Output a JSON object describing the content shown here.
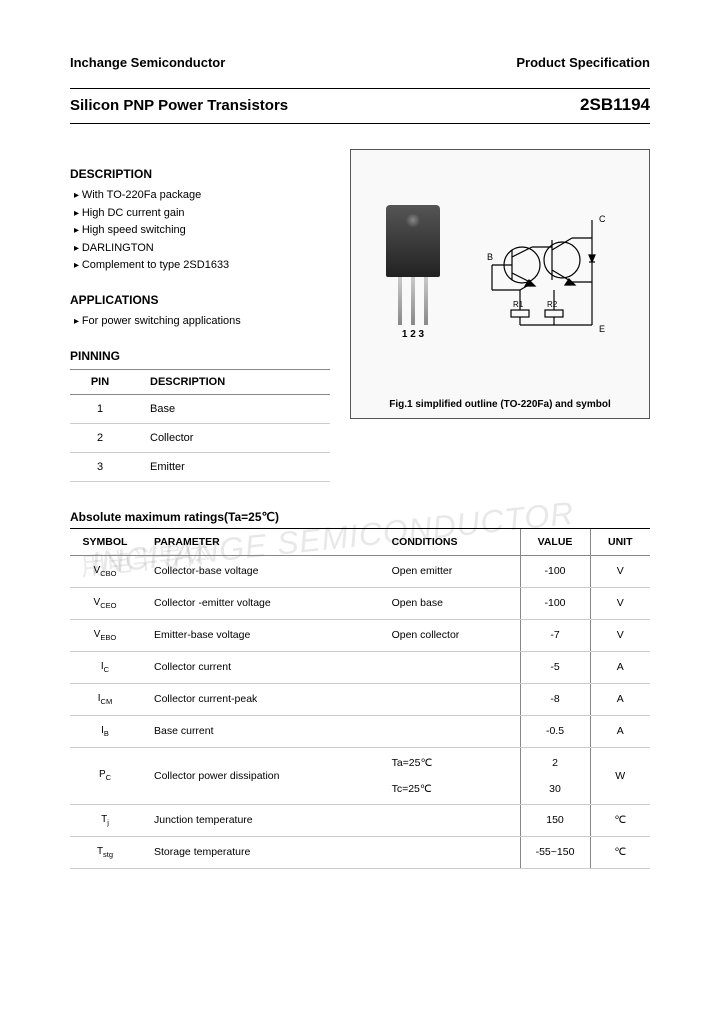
{
  "header": {
    "company": "Inchange Semiconductor",
    "docType": "Product Specification"
  },
  "title": {
    "left": "Silicon PNP Power Transistors",
    "right": "2SB1194"
  },
  "description": {
    "heading": "DESCRIPTION",
    "items": [
      "With TO-220Fa package",
      "High DC current gain",
      "High speed switching",
      "DARLINGTON",
      "Complement to type 2SD1633"
    ]
  },
  "applications": {
    "heading": "APPLICATIONS",
    "items": [
      "For power switching applications"
    ]
  },
  "pinning": {
    "heading": "PINNING",
    "columns": {
      "pin": "PIN",
      "desc": "DESCRIPTION"
    },
    "rows": [
      {
        "pin": "1",
        "desc": "Base"
      },
      {
        "pin": "2",
        "desc": "Collector"
      },
      {
        "pin": "3",
        "desc": "Emitter"
      }
    ]
  },
  "figure": {
    "pinLabels": "1  2  3",
    "symbolLabels": {
      "c": "C",
      "b": "B",
      "e": "E",
      "r1": "R1",
      "r2": "R2"
    },
    "caption": "Fig.1 simplified outline (TO-220Fa) and symbol",
    "box_border_color": "#555555",
    "box_bg_color": "#f9f9f9"
  },
  "ratings": {
    "heading": "Absolute maximum ratings(Ta=25℃)",
    "columns": {
      "symbol": "SYMBOL",
      "parameter": "PARAMETER",
      "conditions": "CONDITIONS",
      "value": "VALUE",
      "unit": "UNIT"
    },
    "rows": [
      {
        "sym": "V",
        "sub": "CBO",
        "param": "Collector-base voltage",
        "cond": "Open emitter",
        "val": "-100",
        "unit": "V"
      },
      {
        "sym": "V",
        "sub": "CEO",
        "param": "Collector -emitter voltage",
        "cond": "Open base",
        "val": "-100",
        "unit": "V"
      },
      {
        "sym": "V",
        "sub": "EBO",
        "param": "Emitter-base voltage",
        "cond": "Open collector",
        "val": "-7",
        "unit": "V"
      },
      {
        "sym": "I",
        "sub": "C",
        "param": "Collector current",
        "cond": "",
        "val": "-5",
        "unit": "A"
      },
      {
        "sym": "I",
        "sub": "CM",
        "param": "Collector current-peak",
        "cond": "",
        "val": "-8",
        "unit": "A"
      },
      {
        "sym": "I",
        "sub": "B",
        "param": "Base current",
        "cond": "",
        "val": "-0.5",
        "unit": "A"
      },
      {
        "sym": "P",
        "sub": "C",
        "param": "Collector power dissipation",
        "cond": "Ta=25℃",
        "cond2": "Tc=25℃",
        "val": "2",
        "val2": "30",
        "unit": "W"
      },
      {
        "sym": "T",
        "sub": "j",
        "param": "Junction temperature",
        "cond": "",
        "val": "150",
        "unit": "℃"
      },
      {
        "sym": "T",
        "sub": "stg",
        "param": "Storage temperature",
        "cond": "",
        "val": "-55~150",
        "unit": "℃"
      }
    ]
  },
  "watermark": {
    "en": "INCHANGE SEMICONDUCTOR",
    "cn": "用电半导体"
  },
  "colors": {
    "text": "#000000",
    "border_main": "#000000",
    "border_light": "#cccccc",
    "border_mid": "#888888",
    "watermark": "rgba(0,0,0,0.09)"
  },
  "typography": {
    "body_fontsize": 12,
    "title_left_fontsize": 15,
    "title_right_fontsize": 17,
    "section_head_fontsize": 12,
    "table_fontsize": 10.5,
    "caption_fontsize": 10
  }
}
